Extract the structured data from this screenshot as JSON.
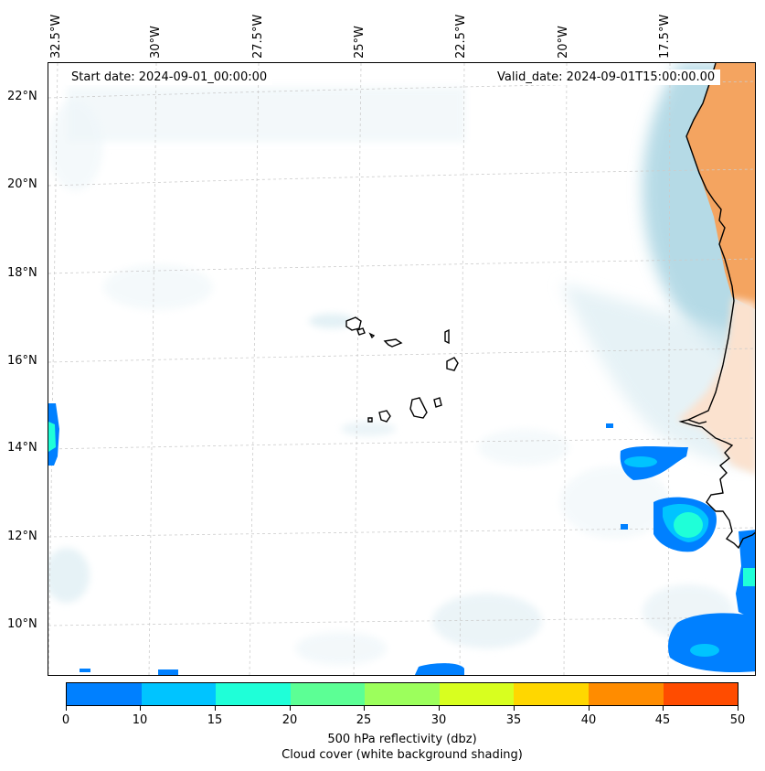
{
  "map": {
    "start_date": "Start date: 2024-09-01_00:00:00",
    "valid_date": "Valid_date: 2024-09-01T15:00:00.00",
    "longitude_labels": [
      "32.5°W",
      "30°W",
      "27.5°W",
      "25°W",
      "22.5°W",
      "20°W",
      "17.5°W"
    ],
    "latitude_labels": [
      "22°N",
      "20°N",
      "18°N",
      "16°N",
      "14°N",
      "12°N",
      "10°N"
    ]
  },
  "colorbar": {
    "ticks": [
      "0",
      "10",
      "15",
      "20",
      "25",
      "30",
      "35",
      "40",
      "45",
      "50"
    ],
    "colors": [
      "#0080ff",
      "#00c4ff",
      "#1fffd8",
      "#5cff95",
      "#9cff5c",
      "#d8ff1f",
      "#ffd700",
      "#ff8c00",
      "#ff4c00"
    ],
    "label_line1": "500 hPa reflectivity (dbz)",
    "label_line2": "Cloud cover (white background shading)"
  }
}
